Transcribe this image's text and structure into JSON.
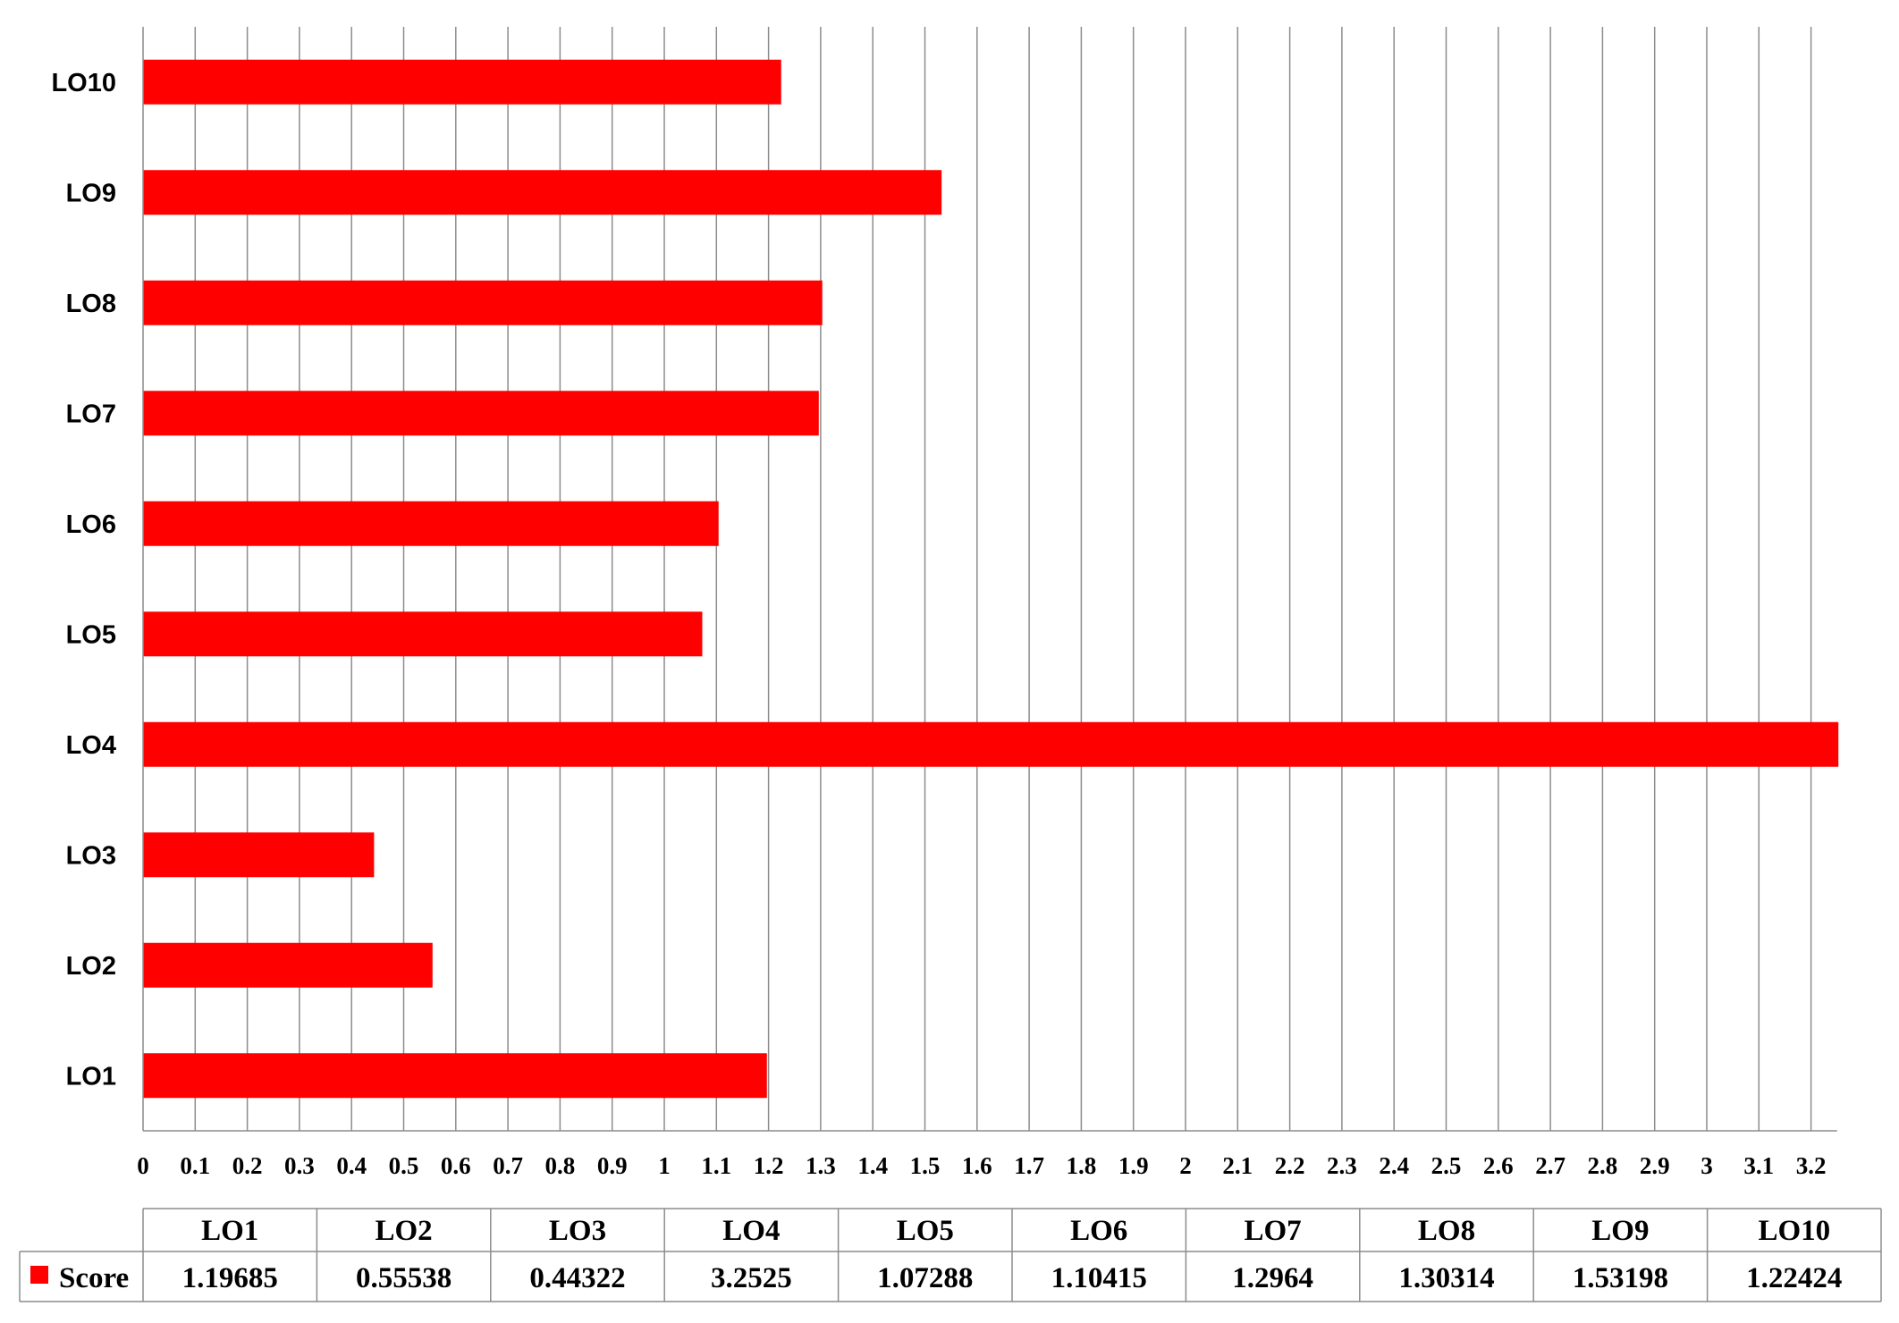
{
  "chart_data": {
    "type": "bar",
    "orientation": "horizontal",
    "categories": [
      "LO1",
      "LO2",
      "LO3",
      "LO4",
      "LO5",
      "LO6",
      "LO7",
      "LO8",
      "LO9",
      "LO10"
    ],
    "series": [
      {
        "name": "Score",
        "color": "#ff0000",
        "values": [
          1.19685,
          0.55538,
          0.44322,
          3.2525,
          1.07288,
          1.10415,
          1.2964,
          1.30314,
          1.53198,
          1.22424
        ],
        "value_labels": [
          "1.19685",
          "0.55538",
          "0.44322",
          "3.2525",
          "1.07288",
          "1.10415",
          "1.2964",
          "1.30314",
          "1.53198",
          "1.22424"
        ]
      }
    ],
    "xlim": [
      0,
      3.25
    ],
    "x_ticks": [
      "0",
      "0.1",
      "0.2",
      "0.3",
      "0.4",
      "0.5",
      "0.6",
      "0.7",
      "0.8",
      "0.9",
      "1",
      "1.1",
      "1.2",
      "1.3",
      "1.4",
      "1.5",
      "1.6",
      "1.7",
      "1.8",
      "1.9",
      "2",
      "2.1",
      "2.2",
      "2.3",
      "2.4",
      "2.5",
      "2.6",
      "2.7",
      "2.8",
      "2.9",
      "3",
      "3.1",
      "3.2"
    ],
    "grid": "vertical",
    "legend": "data-table",
    "data_table": true,
    "title": "",
    "xlabel": "",
    "ylabel": ""
  }
}
